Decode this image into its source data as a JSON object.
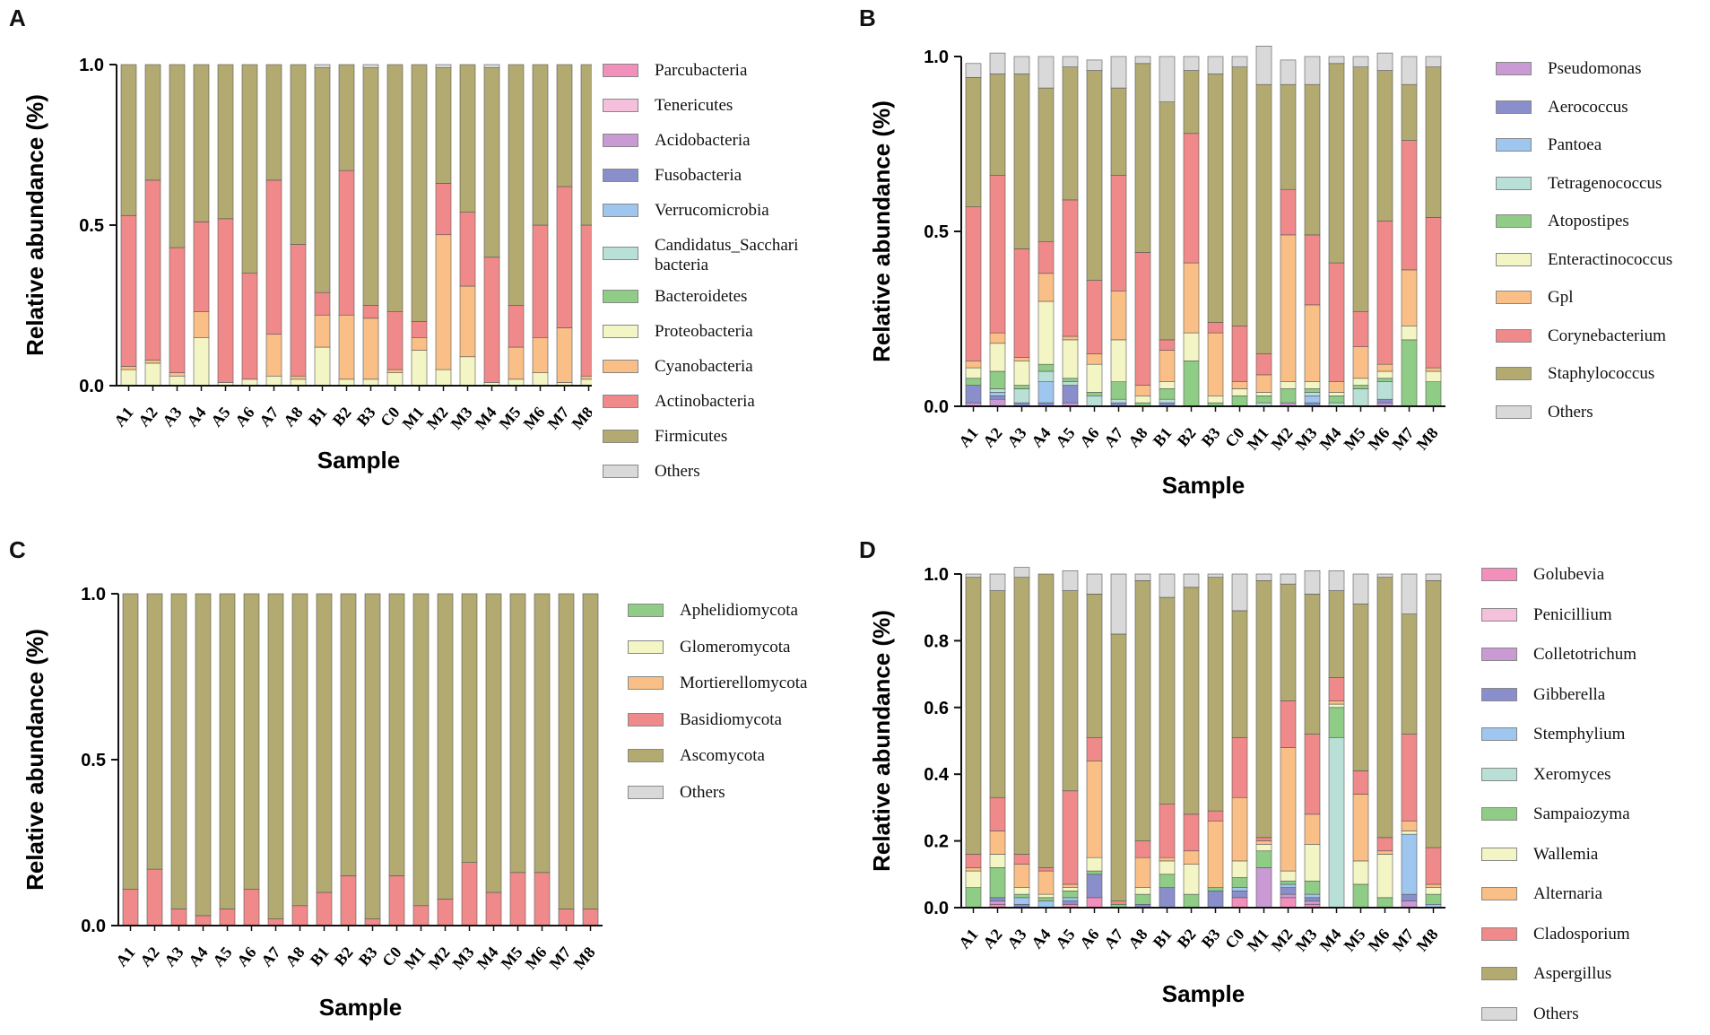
{
  "chart_data": [
    {
      "panel": "A",
      "type": "bar",
      "stacked": true,
      "categories": [
        "A1",
        "A2",
        "A3",
        "A4",
        "A5",
        "A6",
        "A7",
        "A8",
        "B1",
        "B2",
        "B3",
        "C0",
        "M1",
        "M2",
        "M3",
        "M4",
        "M5",
        "M6",
        "M7",
        "M8"
      ],
      "xlabel": "Sample",
      "ylabel": "Relative abundance (%)",
      "ylim": [
        0,
        1.0
      ],
      "yticks": [
        "0.0",
        "0.5",
        "1.0"
      ],
      "legend_position": "right",
      "series": [
        {
          "name": "Proteobacteria",
          "color": "#f3f5c4",
          "values": [
            0.05,
            0.07,
            0.03,
            0.15,
            0.01,
            0.02,
            0.03,
            0.02,
            0.12,
            0.02,
            0.02,
            0.04,
            0.11,
            0.05,
            0.09,
            0.01,
            0.02,
            0.04,
            0.01,
            0.02
          ]
        },
        {
          "name": "Cyanobacteria",
          "color": "#f9bf86",
          "values": [
            0.01,
            0.01,
            0.01,
            0.08,
            0.0,
            0.0,
            0.13,
            0.01,
            0.1,
            0.2,
            0.19,
            0.01,
            0.04,
            0.42,
            0.22,
            0.0,
            0.1,
            0.11,
            0.17,
            0.01
          ]
        },
        {
          "name": "Actinobacteria",
          "color": "#f0898a",
          "values": [
            0.47,
            0.56,
            0.39,
            0.28,
            0.51,
            0.33,
            0.48,
            0.41,
            0.07,
            0.45,
            0.04,
            0.18,
            0.05,
            0.16,
            0.23,
            0.39,
            0.13,
            0.35,
            0.44,
            0.47
          ]
        },
        {
          "name": "Firmicutes",
          "color": "#b2aa70",
          "values": [
            0.47,
            0.36,
            0.57,
            0.49,
            0.48,
            0.65,
            0.36,
            0.56,
            0.7,
            0.33,
            0.74,
            0.77,
            0.8,
            0.36,
            0.46,
            0.59,
            0.75,
            0.5,
            0.38,
            0.5
          ]
        },
        {
          "name": "Others",
          "color": "#d9d9d9",
          "values": [
            0,
            0,
            0,
            0,
            0,
            0,
            0,
            0,
            0.01,
            0,
            0.01,
            0,
            0,
            0.01,
            0,
            0.01,
            0,
            0,
            0,
            0
          ]
        }
      ],
      "legend": [
        {
          "name": "Parcubacteria",
          "color": "#f28fbb"
        },
        {
          "name": "Tenericutes",
          "color": "#f5c0dc"
        },
        {
          "name": "Acidobacteria",
          "color": "#c99ad3"
        },
        {
          "name": "Fusobacteria",
          "color": "#8a8fcc"
        },
        {
          "name": "Verrucomicrobia",
          "color": "#9fc6ee"
        },
        {
          "name": "Candidatus_Sacchari",
          "name2": "bacteria",
          "color": "#b9e0d6"
        },
        {
          "name": "Bacteroidetes",
          "color": "#8fcc86"
        },
        {
          "name": "Proteobacteria",
          "color": "#f3f5c4"
        },
        {
          "name": "Cyanobacteria",
          "color": "#f9bf86"
        },
        {
          "name": "Actinobacteria",
          "color": "#f0898a"
        },
        {
          "name": "Firmicutes",
          "color": "#b2aa70"
        },
        {
          "name": "Others",
          "color": "#d9d9d9"
        }
      ]
    },
    {
      "panel": "B",
      "type": "bar",
      "stacked": true,
      "categories": [
        "A1",
        "A2",
        "A3",
        "A4",
        "A5",
        "A6",
        "A7",
        "A8",
        "B1",
        "B2",
        "B3",
        "C0",
        "M1",
        "M2",
        "M3",
        "M4",
        "M5",
        "M6",
        "M7",
        "M8"
      ],
      "xlabel": "Sample",
      "ylabel": "Relative abundance (%)",
      "ylim": [
        0,
        1.0
      ],
      "yticks": [
        "0.0",
        "0.5",
        "1.0"
      ],
      "legend_position": "right",
      "series": [
        {
          "name": "Pseudomonas",
          "color": "#c99ad3",
          "values": [
            0.01,
            0.02,
            0,
            0,
            0.01,
            0,
            0,
            0,
            0,
            0,
            0,
            0,
            0,
            0.01,
            0,
            0,
            0,
            0.01,
            0,
            0
          ]
        },
        {
          "name": "Aerococcus",
          "color": "#8a8fcc",
          "values": [
            0.05,
            0.01,
            0.01,
            0.01,
            0.05,
            0,
            0.01,
            0,
            0.01,
            0,
            0,
            0,
            0,
            0,
            0.01,
            0,
            0,
            0.01,
            0,
            0
          ]
        },
        {
          "name": "Pantoea",
          "color": "#9fc6ee",
          "values": [
            0,
            0.01,
            0,
            0.06,
            0,
            0,
            0,
            0,
            0,
            0,
            0,
            0,
            0,
            0,
            0.02,
            0,
            0,
            0,
            0,
            0
          ]
        },
        {
          "name": "Tetragenococcus",
          "color": "#b9e0d6",
          "values": [
            0,
            0.01,
            0.04,
            0.03,
            0.01,
            0.03,
            0.01,
            0,
            0.01,
            0,
            0,
            0,
            0.01,
            0,
            0.01,
            0.01,
            0.05,
            0.05,
            0,
            0
          ]
        },
        {
          "name": "Atopostipes",
          "color": "#8fcc86",
          "values": [
            0.02,
            0.05,
            0.01,
            0.02,
            0.01,
            0.01,
            0.05,
            0.01,
            0.03,
            0.13,
            0.01,
            0.03,
            0.02,
            0.04,
            0.01,
            0.02,
            0.01,
            0.01,
            0.19,
            0.07
          ]
        },
        {
          "name": "Enteractinococcus",
          "color": "#f3f5c4",
          "values": [
            0.03,
            0.08,
            0.07,
            0.18,
            0.11,
            0.08,
            0.12,
            0.02,
            0.02,
            0.08,
            0.02,
            0.02,
            0.01,
            0.02,
            0.02,
            0.01,
            0.02,
            0.02,
            0.04,
            0.03
          ]
        },
        {
          "name": "Gpl",
          "color": "#f9bf86",
          "values": [
            0.02,
            0.03,
            0.01,
            0.08,
            0.01,
            0.03,
            0.14,
            0.03,
            0.09,
            0.2,
            0.18,
            0.02,
            0.05,
            0.42,
            0.22,
            0.03,
            0.09,
            0.02,
            0.16,
            0.01
          ]
        },
        {
          "name": "Corynebacterium",
          "color": "#f0898a",
          "values": [
            0.44,
            0.45,
            0.31,
            0.09,
            0.39,
            0.21,
            0.33,
            0.38,
            0.03,
            0.37,
            0.03,
            0.16,
            0.06,
            0.13,
            0.2,
            0.34,
            0.1,
            0.41,
            0.37,
            0.43
          ]
        },
        {
          "name": "Staphylococcus",
          "color": "#b2aa70",
          "values": [
            0.37,
            0.29,
            0.5,
            0.44,
            0.38,
            0.6,
            0.25,
            0.54,
            0.68,
            0.18,
            0.71,
            0.74,
            0.77,
            0.3,
            0.43,
            0.57,
            0.7,
            0.43,
            0.16,
            0.43
          ]
        },
        {
          "name": "Others",
          "color": "#d9d9d9",
          "values": [
            0.04,
            0.06,
            0.05,
            0.09,
            0.03,
            0.03,
            0.09,
            0.02,
            0.13,
            0.04,
            0.05,
            0.03,
            0.11,
            0.07,
            0.08,
            0.02,
            0.03,
            0.05,
            0.08,
            0.03
          ]
        }
      ],
      "legend": [
        {
          "name": "Pseudomonas",
          "color": "#c99ad3"
        },
        {
          "name": "Aerococcus",
          "color": "#8a8fcc"
        },
        {
          "name": "Pantoea",
          "color": "#9fc6ee"
        },
        {
          "name": "Tetragenococcus",
          "color": "#b9e0d6"
        },
        {
          "name": "Atopostipes",
          "color": "#8fcc86"
        },
        {
          "name": "Enteractinococcus",
          "color": "#f3f5c4"
        },
        {
          "name": "Gpl",
          "color": "#f9bf86"
        },
        {
          "name": "Corynebacterium",
          "color": "#f0898a"
        },
        {
          "name": "Staphylococcus",
          "color": "#b2aa70"
        },
        {
          "name": "Others",
          "color": "#d9d9d9"
        }
      ]
    },
    {
      "panel": "C",
      "type": "bar",
      "stacked": true,
      "categories": [
        "A1",
        "A2",
        "A3",
        "A4",
        "A5",
        "A6",
        "A7",
        "A8",
        "B1",
        "B2",
        "B3",
        "C0",
        "M1",
        "M2",
        "M3",
        "M4",
        "M5",
        "M6",
        "M7",
        "M8"
      ],
      "xlabel": "Sample",
      "ylabel": "Relative abundance (%)",
      "ylim": [
        0,
        1.0
      ],
      "yticks": [
        "0.0",
        "0.5",
        "1.0"
      ],
      "legend_position": "right",
      "series": [
        {
          "name": "Basidiomycota",
          "color": "#f0898a",
          "values": [
            0.11,
            0.17,
            0.05,
            0.03,
            0.05,
            0.11,
            0.02,
            0.06,
            0.1,
            0.15,
            0.02,
            0.15,
            0.06,
            0.08,
            0.19,
            0.1,
            0.16,
            0.16,
            0.05,
            0.05
          ]
        },
        {
          "name": "Ascomycota",
          "color": "#b2aa70",
          "values": [
            0.89,
            0.83,
            0.95,
            0.97,
            0.95,
            0.89,
            0.98,
            0.94,
            0.9,
            0.85,
            0.98,
            0.85,
            0.94,
            0.92,
            0.81,
            0.9,
            0.84,
            0.84,
            0.95,
            0.95
          ]
        }
      ],
      "legend": [
        {
          "name": "Aphelidiomycota",
          "color": "#8fcc86"
        },
        {
          "name": "Glomeromycota",
          "color": "#f3f5c4"
        },
        {
          "name": "Mortierellomycota",
          "color": "#f9bf86"
        },
        {
          "name": "Basidiomycota",
          "color": "#f0898a"
        },
        {
          "name": "Ascomycota",
          "color": "#b2aa70"
        },
        {
          "name": "Others",
          "color": "#d9d9d9"
        }
      ]
    },
    {
      "panel": "D",
      "type": "bar",
      "stacked": true,
      "categories": [
        "A1",
        "A2",
        "A3",
        "A4",
        "A5",
        "A6",
        "A7",
        "A8",
        "B1",
        "B2",
        "B3",
        "C0",
        "M1",
        "M2",
        "M3",
        "M4",
        "M5",
        "M6",
        "M7",
        "M8"
      ],
      "xlabel": "Sample",
      "ylabel": "Relative abundance (%)",
      "ylim": [
        0,
        1.0
      ],
      "yticks": [
        "0.0",
        "0.2",
        "0.4",
        "0.6",
        "0.8",
        "1.0"
      ],
      "legend_position": "right",
      "series": [
        {
          "name": "Golubevia",
          "color": "#f28fbb",
          "values": [
            0,
            0.01,
            0,
            0,
            0.01,
            0.03,
            0,
            0,
            0,
            0,
            0,
            0.03,
            0,
            0.03,
            0.01,
            0,
            0,
            0,
            0,
            0
          ]
        },
        {
          "name": "Colletotrichum",
          "color": "#c99ad3",
          "values": [
            0,
            0.01,
            0,
            0,
            0,
            0,
            0,
            0,
            0,
            0,
            0,
            0,
            0.12,
            0.01,
            0.01,
            0,
            0,
            0,
            0.02,
            0
          ]
        },
        {
          "name": "Gibberella",
          "color": "#8a8fcc",
          "values": [
            0,
            0.01,
            0.01,
            0,
            0.01,
            0.07,
            0,
            0.01,
            0.06,
            0,
            0.05,
            0.02,
            0,
            0.02,
            0.01,
            0,
            0,
            0,
            0.02,
            0
          ]
        },
        {
          "name": "Stemphylium",
          "color": "#9fc6ee",
          "values": [
            0,
            0,
            0.02,
            0.02,
            0.01,
            0,
            0,
            0,
            0,
            0,
            0,
            0.01,
            0,
            0.01,
            0.01,
            0,
            0,
            0,
            0.18,
            0.01
          ]
        },
        {
          "name": "Xeromyces",
          "color": "#b9e0d6",
          "values": [
            0,
            0,
            0,
            0,
            0,
            0,
            0,
            0,
            0,
            0,
            0,
            0,
            0,
            0,
            0,
            0.51,
            0,
            0,
            0,
            0
          ]
        },
        {
          "name": "Sampaiozyma",
          "color": "#8fcc86",
          "values": [
            0.06,
            0.09,
            0.01,
            0.01,
            0.02,
            0.01,
            0.01,
            0.03,
            0.04,
            0.04,
            0.01,
            0.03,
            0.05,
            0.01,
            0.04,
            0.09,
            0.07,
            0.03,
            0,
            0.03
          ]
        },
        {
          "name": "Wallemia",
          "color": "#f3f5c4",
          "values": [
            0.05,
            0.04,
            0.02,
            0.01,
            0.01,
            0.04,
            0,
            0.02,
            0.04,
            0.09,
            0,
            0.05,
            0.02,
            0.03,
            0.11,
            0.01,
            0.07,
            0.13,
            0.01,
            0.02
          ]
        },
        {
          "name": "Alternaria",
          "color": "#f9bf86",
          "values": [
            0.01,
            0.07,
            0.07,
            0.07,
            0.01,
            0.29,
            0,
            0.09,
            0.01,
            0.04,
            0.2,
            0.19,
            0.01,
            0.37,
            0.09,
            0.01,
            0.2,
            0.01,
            0.03,
            0.01
          ]
        },
        {
          "name": "Cladosporium",
          "color": "#f0898a",
          "values": [
            0.04,
            0.1,
            0.03,
            0.01,
            0.28,
            0.07,
            0.01,
            0.05,
            0.16,
            0.11,
            0.03,
            0.18,
            0.01,
            0.14,
            0.24,
            0.07,
            0.07,
            0.04,
            0.26,
            0.11
          ]
        },
        {
          "name": "Aspergillus",
          "color": "#b2aa70",
          "values": [
            0.83,
            0.62,
            0.83,
            0.88,
            0.6,
            0.43,
            0.8,
            0.78,
            0.62,
            0.68,
            0.7,
            0.38,
            0.77,
            0.35,
            0.42,
            0.26,
            0.5,
            0.78,
            0.36,
            0.8
          ]
        },
        {
          "name": "Others",
          "color": "#d9d9d9",
          "values": [
            0.01,
            0.05,
            0.03,
            0,
            0.06,
            0.06,
            0.18,
            0.02,
            0.07,
            0.04,
            0.01,
            0.11,
            0.02,
            0.03,
            0.07,
            0.06,
            0.09,
            0.01,
            0.12,
            0.02
          ]
        }
      ],
      "legend": [
        {
          "name": "Golubevia",
          "color": "#f28fbb"
        },
        {
          "name": "Penicillium",
          "color": "#f5c0dc"
        },
        {
          "name": "Colletotrichum",
          "color": "#c99ad3"
        },
        {
          "name": "Gibberella",
          "color": "#8a8fcc"
        },
        {
          "name": "Stemphylium",
          "color": "#9fc6ee"
        },
        {
          "name": "Xeromyces",
          "color": "#b9e0d6"
        },
        {
          "name": "Sampaiozyma",
          "color": "#8fcc86"
        },
        {
          "name": "Wallemia",
          "color": "#f3f5c4"
        },
        {
          "name": "Alternaria",
          "color": "#f9bf86"
        },
        {
          "name": "Cladosporium",
          "color": "#f0898a"
        },
        {
          "name": "Aspergillus",
          "color": "#b2aa70"
        },
        {
          "name": "Others",
          "color": "#d9d9d9"
        }
      ]
    }
  ]
}
